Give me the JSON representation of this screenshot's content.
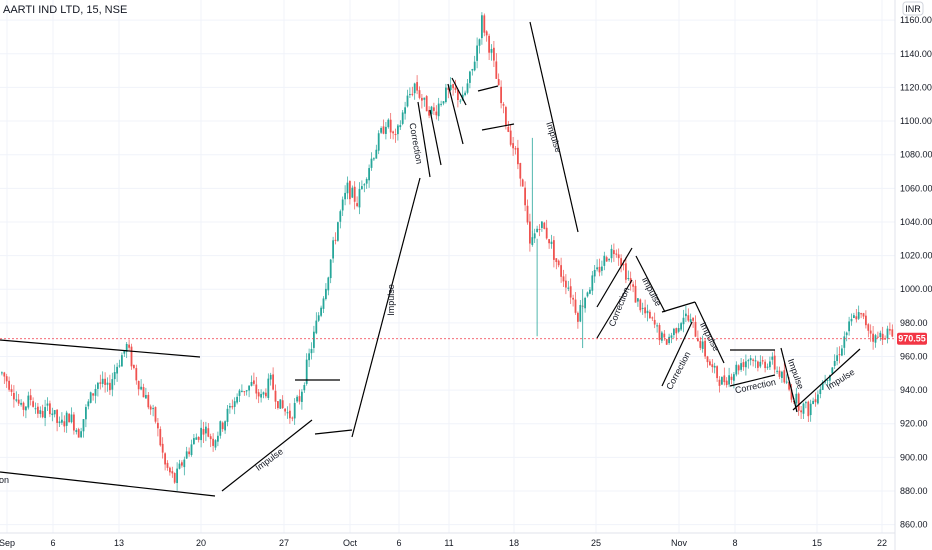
{
  "header": {
    "title": "AARTI IND LTD, 15, NSE",
    "currency": "INR"
  },
  "current_price": {
    "label": "970.55",
    "color": "#f23645"
  },
  "colors": {
    "up": "#26a69a",
    "down": "#ef5350",
    "wick": "#555555",
    "trendline": "#000000",
    "grid": "#f0f3fa"
  },
  "chart_data": {
    "type": "candlestick",
    "title": "AARTI IND LTD, 15, NSE",
    "ylim": [
      855,
      1172
    ],
    "y_ticks": [
      860,
      880,
      900,
      920,
      940,
      960,
      980,
      1000,
      1020,
      1040,
      1060,
      1080,
      1100,
      1120,
      1140,
      1160
    ],
    "x_ticks": [
      "Sep",
      "6",
      "13",
      "20",
      "27",
      "Oct",
      "6",
      "11",
      "18",
      "25",
      "Nov",
      "8",
      "15",
      "22"
    ],
    "current_price": 970.55,
    "price_path": [
      [
        0,
        950
      ],
      [
        4,
        942
      ],
      [
        8,
        928
      ],
      [
        12,
        935
      ],
      [
        16,
        925
      ],
      [
        20,
        930
      ],
      [
        24,
        918
      ],
      [
        28,
        925
      ],
      [
        32,
        915
      ],
      [
        36,
        932
      ],
      [
        40,
        945
      ],
      [
        44,
        940
      ],
      [
        48,
        955
      ],
      [
        52,
        966
      ],
      [
        56,
        948
      ],
      [
        60,
        935
      ],
      [
        64,
        922
      ],
      [
        68,
        895
      ],
      [
        72,
        886
      ],
      [
        76,
        900
      ],
      [
        80,
        910
      ],
      [
        84,
        918
      ],
      [
        88,
        910
      ],
      [
        92,
        920
      ],
      [
        96,
        932
      ],
      [
        100,
        940
      ],
      [
        104,
        943
      ],
      [
        108,
        935
      ],
      [
        112,
        945
      ],
      [
        116,
        930
      ],
      [
        120,
        925
      ],
      [
        124,
        935
      ],
      [
        128,
        960
      ],
      [
        132,
        985
      ],
      [
        136,
        1010
      ],
      [
        140,
        1040
      ],
      [
        144,
        1060
      ],
      [
        148,
        1052
      ],
      [
        152,
        1070
      ],
      [
        156,
        1085
      ],
      [
        160,
        1100
      ],
      [
        164,
        1088
      ],
      [
        168,
        1110
      ],
      [
        172,
        1122
      ],
      [
        176,
        1110
      ],
      [
        180,
        1105
      ],
      [
        184,
        1115
      ],
      [
        188,
        1118
      ],
      [
        192,
        1112
      ],
      [
        196,
        1130
      ],
      [
        200,
        1160
      ],
      [
        204,
        1140
      ],
      [
        208,
        1110
      ],
      [
        212,
        1090
      ],
      [
        216,
        1070
      ],
      [
        220,
        1025
      ],
      [
        224,
        1040
      ],
      [
        228,
        1030
      ],
      [
        232,
        1012
      ],
      [
        236,
        1002
      ],
      [
        240,
        985
      ],
      [
        244,
        1000
      ],
      [
        248,
        1010
      ],
      [
        252,
        1020
      ],
      [
        256,
        1025
      ],
      [
        260,
        1010
      ],
      [
        264,
        995
      ],
      [
        268,
        985
      ],
      [
        272,
        978
      ],
      [
        276,
        968
      ],
      [
        280,
        975
      ],
      [
        284,
        985
      ],
      [
        288,
        978
      ],
      [
        292,
        965
      ],
      [
        296,
        952
      ],
      [
        300,
        945
      ],
      [
        304,
        950
      ],
      [
        308,
        956
      ],
      [
        312,
        960
      ],
      [
        316,
        955
      ],
      [
        320,
        958
      ],
      [
        324,
        950
      ],
      [
        328,
        940
      ],
      [
        332,
        932
      ],
      [
        336,
        928
      ],
      [
        340,
        940
      ],
      [
        344,
        950
      ],
      [
        348,
        960
      ],
      [
        352,
        975
      ],
      [
        356,
        985
      ],
      [
        360,
        980
      ],
      [
        364,
        970
      ],
      [
        368,
        975
      ],
      [
        371,
        972
      ]
    ],
    "annotations": [
      {
        "text": "Impulse",
        "rotate": -90
      },
      {
        "text": "Impulse",
        "rotate": -36
      },
      {
        "text": "Correction",
        "rotate": 80
      },
      {
        "text": "Impulse",
        "rotate": 72
      },
      {
        "text": "Correction",
        "rotate": -68
      },
      {
        "text": "Impulse",
        "rotate": 62
      },
      {
        "text": "Correction",
        "rotate": -62
      },
      {
        "text": "Impulse",
        "rotate": 62
      },
      {
        "text": "Correction",
        "rotate": -12
      },
      {
        "text": "Impulse",
        "rotate": 70
      },
      {
        "text": "Impulse",
        "rotate": -32
      },
      {
        "text": "on",
        "rotate": 0
      }
    ]
  }
}
